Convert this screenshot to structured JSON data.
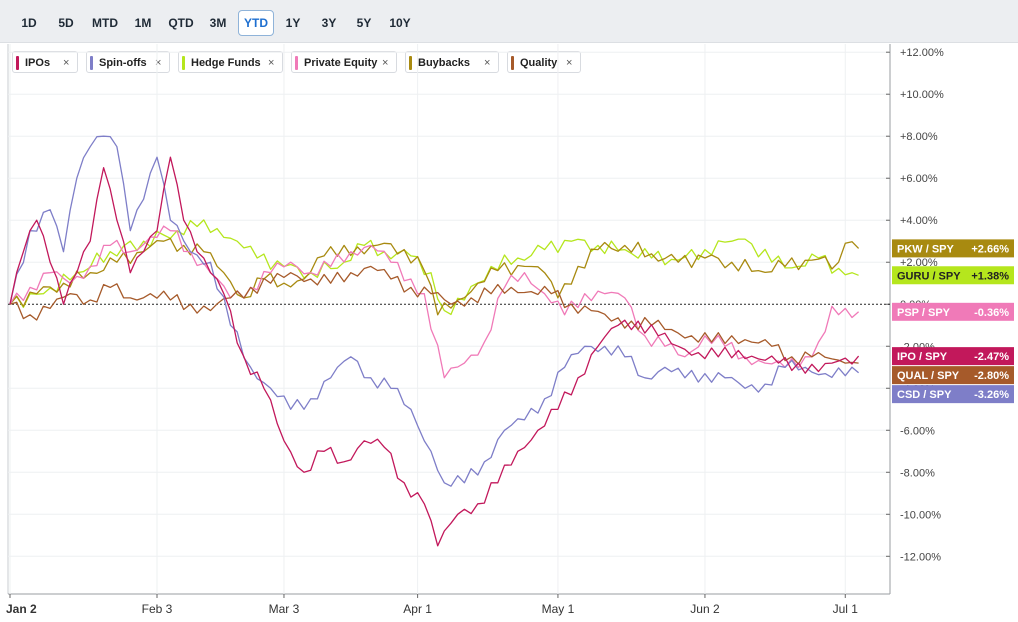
{
  "toolbar": {
    "ranges": [
      "1D",
      "5D",
      "MTD",
      "1M",
      "QTD",
      "3M",
      "YTD",
      "1Y",
      "3Y",
      "5Y",
      "10Y"
    ],
    "active": "YTD"
  },
  "legend": [
    {
      "label": "IPOs",
      "color": "#c2185b",
      "close": "×"
    },
    {
      "label": "Spin-offs",
      "color": "#7e7ec8",
      "close": "×"
    },
    {
      "label": "Hedge Funds",
      "color": "#b5e61d",
      "close": "×"
    },
    {
      "label": "Private Equity",
      "color": "#f07ab8",
      "close": "×"
    },
    {
      "label": "Buybacks",
      "color": "#a88a10",
      "close": "×"
    },
    {
      "label": "Quality",
      "color": "#a65a2a",
      "close": "×"
    }
  ],
  "chart_data": {
    "type": "line",
    "y_tick_labels": [
      "+12.00%",
      "+10.00%",
      "+8.00%",
      "+6.00%",
      "+4.00%",
      "+2.00%",
      "0.00%",
      "-2.00%",
      "-4.00%",
      "-6.00%",
      "-8.00%",
      "-10.00%",
      "-12.00%"
    ],
    "y_ticks": [
      12,
      10,
      8,
      6,
      4,
      2,
      0,
      -2,
      -4,
      -6,
      -8,
      -10,
      -12
    ],
    "ylim": [
      -12.7,
      12.2
    ],
    "x_tick_labels": [
      "Jan 2",
      "Feb 3",
      "Mar 3",
      "Apr 1",
      "May 1",
      "Jun 2",
      "Jul 1"
    ],
    "x_ticks": [
      0,
      22,
      41,
      61,
      82,
      104,
      125
    ],
    "x_count": 130,
    "zero_line": true,
    "series": [
      {
        "name": "Hedge Funds",
        "color": "#b5e61d",
        "end_label": "GURU / SPY",
        "end_value": "+1.38%",
        "end": 1.38,
        "points": [
          [
            0,
            0
          ],
          [
            5,
            0.5
          ],
          [
            10,
            1.5
          ],
          [
            15,
            2.5
          ],
          [
            20,
            3.0
          ],
          [
            25,
            3.5
          ],
          [
            28,
            3.7
          ],
          [
            31,
            3.6
          ],
          [
            34,
            3.0
          ],
          [
            37,
            2.2
          ],
          [
            41,
            1.8
          ],
          [
            45,
            1.5
          ],
          [
            50,
            2.0
          ],
          [
            53,
            2.8
          ],
          [
            56,
            2.5
          ],
          [
            60,
            2.3
          ],
          [
            63,
            1.5
          ],
          [
            65,
            -0.3
          ],
          [
            68,
            0.2
          ],
          [
            72,
            1.8
          ],
          [
            76,
            2.2
          ],
          [
            80,
            2.6
          ],
          [
            84,
            3.0
          ],
          [
            88,
            2.8
          ],
          [
            92,
            2.6
          ],
          [
            96,
            2.2
          ],
          [
            100,
            2.1
          ],
          [
            104,
            2.6
          ],
          [
            108,
            3.0
          ],
          [
            110,
            3.1
          ],
          [
            114,
            2.0
          ],
          [
            118,
            1.8
          ],
          [
            121,
            2.2
          ],
          [
            125,
            1.4
          ],
          [
            127,
            1.38
          ]
        ]
      },
      {
        "name": "Buybacks",
        "color": "#a88a10",
        "end_label": "PKW / SPY",
        "end_value": "+2.66%",
        "end": 2.66,
        "points": [
          [
            0,
            0
          ],
          [
            4,
            0.5
          ],
          [
            8,
            1.0
          ],
          [
            12,
            1.5
          ],
          [
            16,
            2.0
          ],
          [
            20,
            2.5
          ],
          [
            23,
            3.0
          ],
          [
            26,
            2.8
          ],
          [
            29,
            2.5
          ],
          [
            32,
            1.5
          ],
          [
            35,
            0.3
          ],
          [
            38,
            1.2
          ],
          [
            41,
            1.0
          ],
          [
            44,
            1.2
          ],
          [
            47,
            2.3
          ],
          [
            50,
            2.8
          ],
          [
            53,
            2.4
          ],
          [
            56,
            2.9
          ],
          [
            59,
            2.6
          ],
          [
            62,
            1.6
          ],
          [
            64,
            -0.5
          ],
          [
            67,
            0.2
          ],
          [
            70,
            1.0
          ],
          [
            73,
            1.6
          ],
          [
            77,
            1.8
          ],
          [
            80,
            1.5
          ],
          [
            82,
            0.3
          ],
          [
            85,
            1.8
          ],
          [
            88,
            2.6
          ],
          [
            92,
            2.8
          ],
          [
            96,
            2.4
          ],
          [
            100,
            2.0
          ],
          [
            104,
            2.2
          ],
          [
            108,
            2.0
          ],
          [
            112,
            1.6
          ],
          [
            116,
            1.8
          ],
          [
            120,
            2.1
          ],
          [
            124,
            2.0
          ],
          [
            125,
            2.9
          ],
          [
            127,
            2.66
          ]
        ]
      },
      {
        "name": "Private Equity",
        "color": "#f07ab8",
        "end_label": "PSP / SPY",
        "end_value": "-0.36%",
        "end": -0.36,
        "points": [
          [
            0,
            0
          ],
          [
            3,
            0.8
          ],
          [
            6,
            1.5
          ],
          [
            9,
            1.0
          ],
          [
            12,
            1.8
          ],
          [
            15,
            2.8
          ],
          [
            18,
            2.5
          ],
          [
            21,
            3.2
          ],
          [
            24,
            3.5
          ],
          [
            27,
            2.5
          ],
          [
            30,
            1.5
          ],
          [
            33,
            0.3
          ],
          [
            36,
            0.8
          ],
          [
            39,
            1.5
          ],
          [
            42,
            2.0
          ],
          [
            45,
            1.5
          ],
          [
            48,
            1.8
          ],
          [
            51,
            2.5
          ],
          [
            54,
            2.8
          ],
          [
            57,
            2.0
          ],
          [
            60,
            1.2
          ],
          [
            62,
            0.5
          ],
          [
            65,
            -3.5
          ],
          [
            68,
            -2.8
          ],
          [
            71,
            -1.8
          ],
          [
            74,
            0.8
          ],
          [
            77,
            1.5
          ],
          [
            80,
            0.5
          ],
          [
            83,
            -0.5
          ],
          [
            86,
            0.5
          ],
          [
            89,
            0.5
          ],
          [
            92,
            0.3
          ],
          [
            95,
            -1.5
          ],
          [
            98,
            -2.0
          ],
          [
            101,
            -2.5
          ],
          [
            104,
            -1.5
          ],
          [
            107,
            -2.0
          ],
          [
            110,
            -2.5
          ],
          [
            113,
            -2.8
          ],
          [
            116,
            -3.0
          ],
          [
            119,
            -2.5
          ],
          [
            121,
            -1.8
          ],
          [
            123,
            -0.1
          ],
          [
            125,
            -0.2
          ],
          [
            127,
            -0.36
          ]
        ]
      },
      {
        "name": "Quality",
        "color": "#a65a2a",
        "end_label": "QUAL / SPY",
        "end_value": "-2.80%",
        "end": -2.8,
        "points": [
          [
            0,
            0
          ],
          [
            3,
            -0.5
          ],
          [
            6,
            -0.2
          ],
          [
            9,
            0.5
          ],
          [
            12,
            0.2
          ],
          [
            15,
            0.8
          ],
          [
            18,
            0.3
          ],
          [
            21,
            0.5
          ],
          [
            24,
            0.2
          ],
          [
            27,
            0.0
          ],
          [
            30,
            -0.3
          ],
          [
            33,
            0.3
          ],
          [
            36,
            0.8
          ],
          [
            39,
            1.0
          ],
          [
            42,
            1.5
          ],
          [
            45,
            1.2
          ],
          [
            48,
            1.0
          ],
          [
            51,
            1.5
          ],
          [
            54,
            1.8
          ],
          [
            57,
            1.2
          ],
          [
            60,
            0.8
          ],
          [
            63,
            0.5
          ],
          [
            66,
            0.0
          ],
          [
            69,
            0.3
          ],
          [
            72,
            0.5
          ],
          [
            75,
            0.8
          ],
          [
            78,
            0.6
          ],
          [
            81,
            0.5
          ],
          [
            84,
            0.0
          ],
          [
            87,
            -0.3
          ],
          [
            90,
            -0.8
          ],
          [
            93,
            -0.8
          ],
          [
            96,
            -1.0
          ],
          [
            99,
            -1.2
          ],
          [
            102,
            -1.5
          ],
          [
            105,
            -1.8
          ],
          [
            108,
            -1.5
          ],
          [
            111,
            -1.8
          ],
          [
            114,
            -2.0
          ],
          [
            117,
            -2.5
          ],
          [
            120,
            -2.5
          ],
          [
            123,
            -2.6
          ],
          [
            125,
            -2.8
          ],
          [
            127,
            -2.8
          ]
        ]
      },
      {
        "name": "Spin-offs",
        "color": "#7e7ec8",
        "end_label": "CSD / SPY",
        "end_value": "-3.26%",
        "end": -3.26,
        "points": [
          [
            0,
            0
          ],
          [
            3,
            3.5
          ],
          [
            6,
            4.5
          ],
          [
            8,
            2.5
          ],
          [
            10,
            6.0
          ],
          [
            12,
            7.5
          ],
          [
            14,
            8.0
          ],
          [
            16,
            7.5
          ],
          [
            18,
            3.5
          ],
          [
            20,
            5.0
          ],
          [
            22,
            7.0
          ],
          [
            24,
            4.0
          ],
          [
            27,
            2.5
          ],
          [
            30,
            2.0
          ],
          [
            33,
            -1.0
          ],
          [
            36,
            -3.0
          ],
          [
            39,
            -4.0
          ],
          [
            42,
            -5.0
          ],
          [
            45,
            -4.5
          ],
          [
            48,
            -3.5
          ],
          [
            51,
            -2.5
          ],
          [
            54,
            -3.5
          ],
          [
            57,
            -4.0
          ],
          [
            60,
            -5.0
          ],
          [
            63,
            -7.0
          ],
          [
            65,
            -8.5
          ],
          [
            68,
            -8.5
          ],
          [
            71,
            -7.5
          ],
          [
            74,
            -6.0
          ],
          [
            77,
            -5.5
          ],
          [
            80,
            -4.5
          ],
          [
            83,
            -3.0
          ],
          [
            86,
            -2.0
          ],
          [
            89,
            -2.0
          ],
          [
            92,
            -2.5
          ],
          [
            95,
            -3.5
          ],
          [
            98,
            -3.0
          ],
          [
            101,
            -3.5
          ],
          [
            104,
            -3.3
          ],
          [
            107,
            -3.5
          ],
          [
            110,
            -4.0
          ],
          [
            113,
            -3.8
          ],
          [
            116,
            -3.0
          ],
          [
            119,
            -3.0
          ],
          [
            122,
            -3.3
          ],
          [
            125,
            -3.4
          ],
          [
            127,
            -3.26
          ]
        ]
      },
      {
        "name": "IPOs",
        "color": "#c2185b",
        "end_label": "IPO / SPY",
        "end_value": "-2.47%",
        "end": -2.47,
        "points": [
          [
            0,
            0
          ],
          [
            2,
            2.5
          ],
          [
            4,
            4.0
          ],
          [
            6,
            2.0
          ],
          [
            8,
            0.0
          ],
          [
            10,
            1.5
          ],
          [
            12,
            3.0
          ],
          [
            14,
            6.5
          ],
          [
            16,
            4.0
          ],
          [
            18,
            1.5
          ],
          [
            20,
            2.5
          ],
          [
            22,
            3.5
          ],
          [
            24,
            7.0
          ],
          [
            26,
            4.0
          ],
          [
            28,
            2.5
          ],
          [
            30,
            1.5
          ],
          [
            32,
            0.5
          ],
          [
            35,
            -2.5
          ],
          [
            38,
            -4.0
          ],
          [
            41,
            -6.5
          ],
          [
            44,
            -8.0
          ],
          [
            47,
            -7.0
          ],
          [
            50,
            -7.5
          ],
          [
            53,
            -6.5
          ],
          [
            56,
            -6.8
          ],
          [
            59,
            -8.5
          ],
          [
            62,
            -9.5
          ],
          [
            64,
            -11.5
          ],
          [
            67,
            -10.0
          ],
          [
            70,
            -9.5
          ],
          [
            73,
            -8.5
          ],
          [
            76,
            -7.0
          ],
          [
            79,
            -6.0
          ],
          [
            82,
            -5.0
          ],
          [
            85,
            -3.5
          ],
          [
            88,
            -2.0
          ],
          [
            91,
            -1.0
          ],
          [
            94,
            -0.8
          ],
          [
            97,
            -1.5
          ],
          [
            100,
            -2.0
          ],
          [
            103,
            -2.3
          ],
          [
            106,
            -2.5
          ],
          [
            109,
            -2.2
          ],
          [
            112,
            -2.6
          ],
          [
            115,
            -2.8
          ],
          [
            118,
            -2.8
          ],
          [
            121,
            -3.2
          ],
          [
            124,
            -2.7
          ],
          [
            127,
            -2.47
          ]
        ]
      }
    ]
  }
}
